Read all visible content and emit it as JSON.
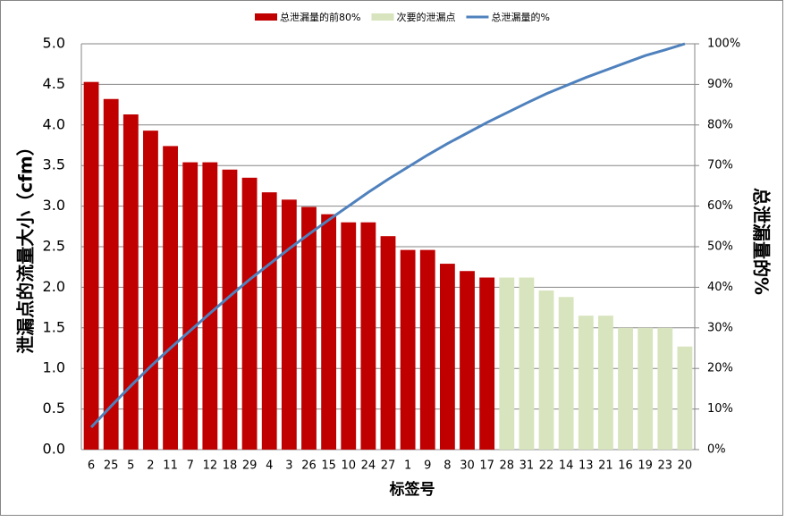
{
  "chart_data": {
    "type": "pareto",
    "y_label": "泄漏点的流量大小（cfm）",
    "y2_label": "总泄漏量的%",
    "x_label": "标签号",
    "categories": [
      "6",
      "25",
      "5",
      "2",
      "11",
      "7",
      "12",
      "18",
      "29",
      "4",
      "3",
      "26",
      "15",
      "10",
      "24",
      "27",
      "1",
      "9",
      "8",
      "30",
      "17",
      "28",
      "31",
      "22",
      "14",
      "13",
      "21",
      "16",
      "19",
      "23",
      "20"
    ],
    "series": [
      {
        "name": "总泄漏量的前80%",
        "kind": "bar",
        "color": "#c00000",
        "values": [
          4.53,
          4.32,
          4.13,
          3.93,
          3.74,
          3.54,
          3.54,
          3.45,
          3.35,
          3.17,
          3.08,
          2.99,
          2.9,
          2.8,
          2.8,
          2.63,
          2.46,
          2.46,
          2.29,
          2.2,
          2.12,
          null,
          null,
          null,
          null,
          null,
          null,
          null,
          null,
          null,
          null
        ]
      },
      {
        "name": "次要的泄漏点",
        "kind": "bar",
        "color": "#d7e4bd",
        "values": [
          null,
          null,
          null,
          null,
          null,
          null,
          null,
          null,
          null,
          null,
          null,
          null,
          null,
          null,
          null,
          null,
          null,
          null,
          null,
          null,
          null,
          2.12,
          2.12,
          1.96,
          1.88,
          1.65,
          1.65,
          1.5,
          1.5,
          1.5,
          1.27
        ]
      },
      {
        "name": "总泄漏量的%",
        "kind": "line",
        "axis": "y2",
        "color": "#4f81bd",
        "values": [
          5.5,
          10.7,
          15.7,
          20.5,
          25.0,
          29.3,
          33.6,
          37.8,
          41.9,
          45.7,
          49.5,
          53.1,
          56.6,
          60.0,
          63.4,
          66.6,
          69.6,
          72.6,
          75.4,
          78.0,
          80.6,
          83.0,
          85.4,
          87.7,
          89.7,
          91.7,
          93.5,
          95.3,
          97.1,
          98.5,
          100
        ]
      }
    ],
    "ylim": [
      0,
      5
    ],
    "yticks": [
      {
        "value": 0,
        "label": "0.0"
      },
      0.5,
      {
        "value": 1,
        "label": "1.0"
      },
      1.5,
      {
        "value": 2,
        "label": "2.0"
      },
      2.5,
      {
        "value": 3,
        "label": "3.0"
      },
      3.5,
      {
        "value": 4,
        "label": "4.0"
      },
      4.5,
      {
        "value": 5,
        "label": "5.0"
      }
    ],
    "y2lim": [
      0,
      100
    ],
    "y2ticks": [
      {
        "value": 0,
        "label": "0%"
      },
      {
        "value": 10,
        "label": "10%"
      },
      {
        "value": 20,
        "label": "20%"
      },
      {
        "value": 30,
        "label": "30%"
      },
      {
        "value": 40,
        "label": "40%"
      },
      {
        "value": 50,
        "label": "50%"
      },
      {
        "value": 60,
        "label": "60%"
      },
      {
        "value": 70,
        "label": "70%"
      },
      {
        "value": 80,
        "label": "80%"
      },
      {
        "value": 90,
        "label": "90%"
      },
      {
        "value": 100,
        "label": "100%"
      }
    ],
    "grid": true,
    "legend": "top"
  }
}
